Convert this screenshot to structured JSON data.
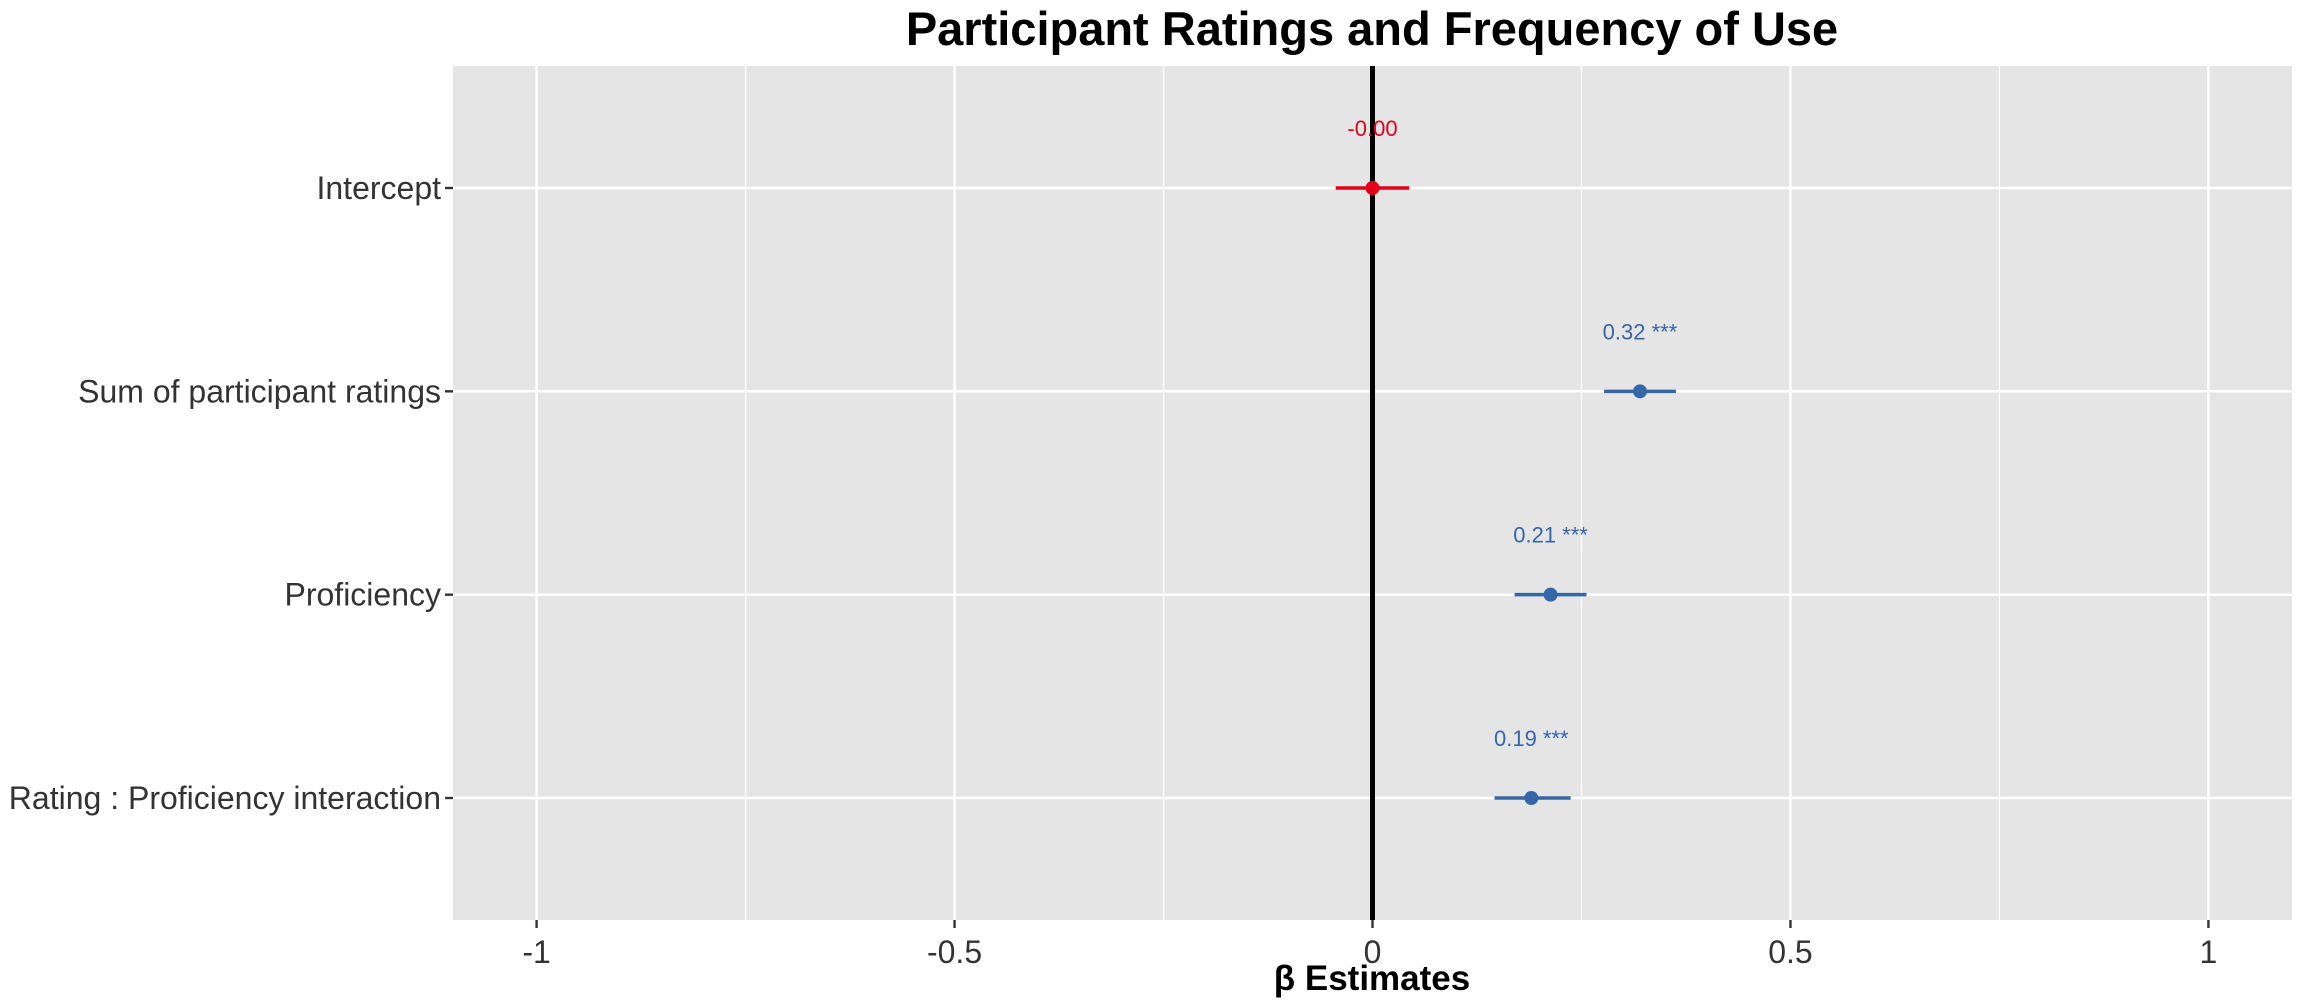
{
  "chart_data": {
    "type": "scatter",
    "title": "Participant Ratings and Frequency of Use",
    "xlabel": "β Estimates",
    "ylabel": "",
    "xlim": [
      -1.1,
      1.1
    ],
    "x_ticks": [
      -1,
      -0.5,
      0,
      0.5,
      1
    ],
    "x_tick_labels": [
      "-1",
      "-0.5",
      "0",
      "0.5",
      "1"
    ],
    "reference_line_x": 0,
    "grid": true,
    "legend": "none",
    "colors": {
      "negative": "#e2001a",
      "positive": "#3567a8",
      "panel": "#e5e5e5",
      "grid": "#ffffff",
      "reference": "#000000"
    },
    "terms": [
      {
        "label": "Intercept",
        "estimate": -0.0,
        "ci": [
          -0.044,
          0.044
        ],
        "value_label": "-0.00",
        "sign": "negative"
      },
      {
        "label": "Sum of participant ratings",
        "estimate": 0.32,
        "ci": [
          0.277,
          0.363
        ],
        "value_label": "0.32 ***",
        "sign": "positive"
      },
      {
        "label": "Proficiency",
        "estimate": 0.213,
        "ci": [
          0.17,
          0.256
        ],
        "value_label": "0.21 ***",
        "sign": "positive"
      },
      {
        "label": "Rating : Proficiency interaction",
        "estimate": 0.19,
        "ci": [
          0.146,
          0.237
        ],
        "value_label": "0.19 ***",
        "sign": "positive"
      }
    ]
  }
}
